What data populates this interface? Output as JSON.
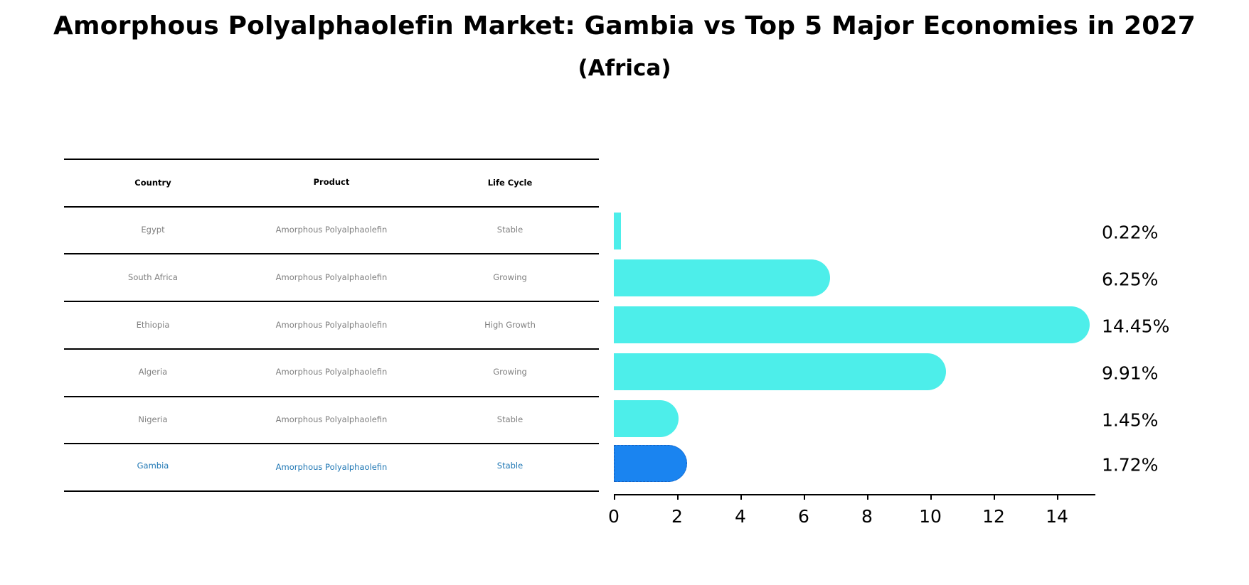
{
  "title": "Amorphous Polyalphaolefin Market: Gambia vs Top 5 Major Economies in 2027",
  "subtitle": "(Africa)",
  "table": {
    "headers": [
      "Country",
      "Product",
      "Life Cycle"
    ],
    "rows": [
      {
        "country": "Egypt",
        "product": "Amorphous Polyalphaolefin",
        "life_cycle": "Stable"
      },
      {
        "country": "South Africa",
        "product": "Amorphous Polyalphaolefin",
        "life_cycle": "Growing"
      },
      {
        "country": "Ethiopia",
        "product": "Amorphous Polyalphaolefin",
        "life_cycle": "High Growth"
      },
      {
        "country": "Algeria",
        "product": "Amorphous Polyalphaolefin",
        "life_cycle": "Growing"
      },
      {
        "country": "Nigeria",
        "product": "Amorphous Polyalphaolefin",
        "life_cycle": "Stable"
      },
      {
        "country": "Gambia",
        "product": "Amorphous Polyalphaolefin",
        "life_cycle": "Stable"
      }
    ]
  },
  "colors": {
    "bar": "#4deeea",
    "highlight_bar": "#1a84f0",
    "highlight_text": "#1f77b4",
    "row_text": "#7f7f7f"
  },
  "chart_data": {
    "type": "bar",
    "orientation": "horizontal",
    "title": "Amorphous Polyalphaolefin Market: Gambia vs Top 5 Major Economies in 2027",
    "subtitle": "(Africa)",
    "categories": [
      "Egypt",
      "South Africa",
      "Ethiopia",
      "Algeria",
      "Nigeria",
      "Gambia"
    ],
    "values": [
      0.22,
      6.25,
      14.45,
      9.91,
      1.45,
      1.72
    ],
    "value_labels": [
      "0.22%",
      "6.25%",
      "14.45%",
      "9.91%",
      "1.45%",
      "1.72%"
    ],
    "highlight": "Gambia",
    "xlabel": "",
    "ylabel": "",
    "xlim": [
      0,
      15.2
    ],
    "xticks": [
      "0",
      "2",
      "4",
      "6",
      "8",
      "10",
      "12",
      "14"
    ],
    "grid": false,
    "legend": null
  }
}
